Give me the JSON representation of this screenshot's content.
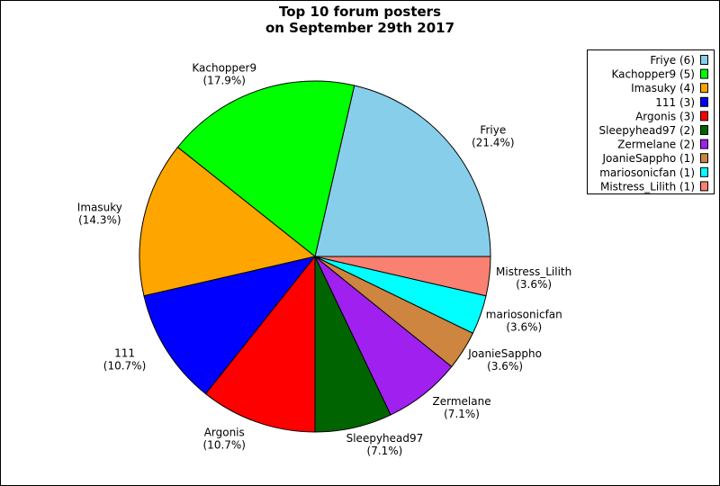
{
  "chart_data": {
    "type": "pie",
    "title": "Top 10 forum posters\non September 29th 2017",
    "categories": [
      "Friye",
      "Kachopper9",
      "Imasuky",
      "111",
      "Argonis",
      "Sleepyhead97",
      "Zermelane",
      "JoanieSappho",
      "mariosonicfan",
      "Mistress_Lilith"
    ],
    "values": [
      21.4,
      17.9,
      14.3,
      10.7,
      10.7,
      7.1,
      7.1,
      3.6,
      3.6,
      3.6
    ],
    "value_labels": [
      "(21.4%)",
      "(17.9%)",
      "(14.3%)",
      "(10.7%)",
      "(10.7%)",
      "(7.1%)",
      "(7.1%)",
      "(3.6%)",
      "(3.6%)",
      "(3.6%)"
    ],
    "legend_labels": [
      "Friye (6)",
      "Kachopper9 (5)",
      "Imasuky (4)",
      "111 (3)",
      "Argonis (3)",
      "Sleepyhead97 (2)",
      "Zermelane (2)",
      "JoanieSappho (1)",
      "mariosonicfan (1)",
      "Mistress_Lilith (1)"
    ],
    "colors": [
      "#87ceeb",
      "#00ff00",
      "#ffa500",
      "#0000ff",
      "#ff0000",
      "#006400",
      "#a020f0",
      "#cd853f",
      "#00ffff",
      "#fa8072"
    ],
    "legend": "upper right"
  }
}
